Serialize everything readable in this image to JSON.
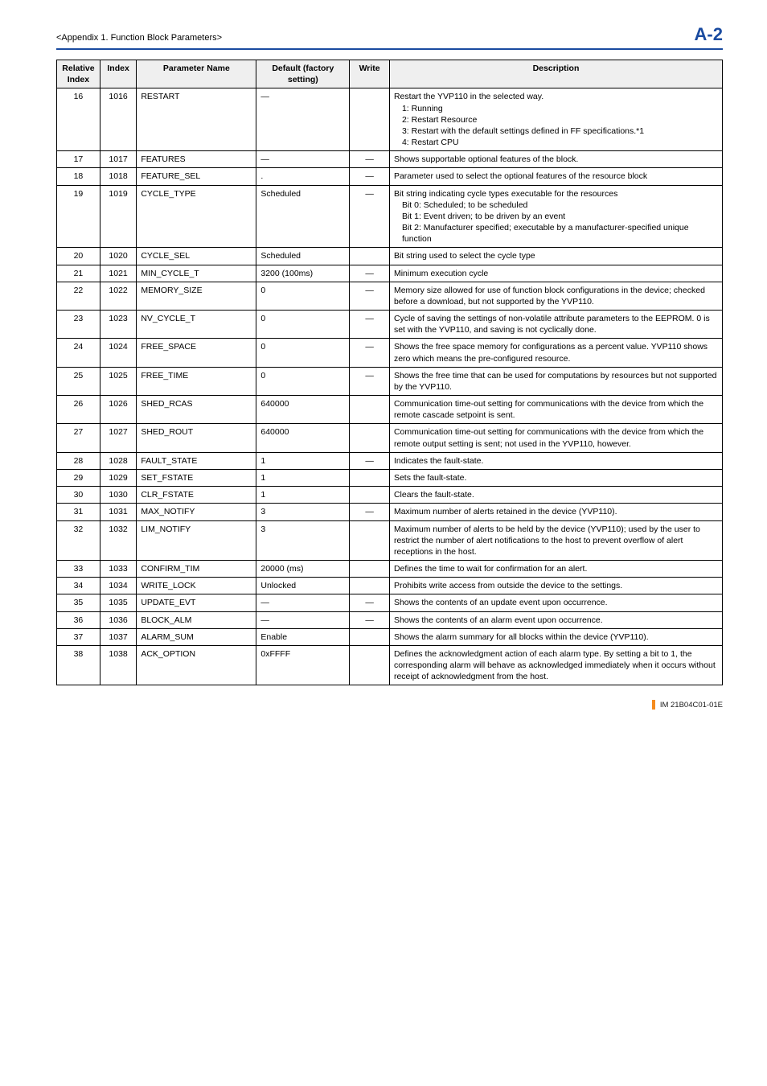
{
  "header": {
    "title": "<Appendix 1.  Function Block Parameters>",
    "page": "A-2"
  },
  "footer": {
    "text": "IM 21B04C01-01E",
    "bar_color": "#f58b1f"
  },
  "table": {
    "columns": [
      "Relative Index",
      "Index",
      "Parameter Name",
      "Default (factory setting)",
      "Write",
      "Description"
    ],
    "rows": [
      {
        "rel": "16",
        "idx": "1016",
        "name": "RESTART",
        "def": "—",
        "wr": "",
        "desc": "Restart the YVP110 in the selected way.",
        "desc_lines": [
          "1: Running",
          "2: Restart Resource",
          "3: Restart with the default settings defined in FF specifications.*1",
          "4: Restart CPU"
        ]
      },
      {
        "rel": "17",
        "idx": "1017",
        "name": "FEATURES",
        "def": "—",
        "wr": "—",
        "desc": "Shows supportable optional features of the block."
      },
      {
        "rel": "18",
        "idx": "1018",
        "name": "FEATURE_SEL",
        "def": ".",
        "wr": "—",
        "desc": "Parameter used to select the optional features of the resource block"
      },
      {
        "rel": "19",
        "idx": "1019",
        "name": "CYCLE_TYPE",
        "def": "Scheduled",
        "wr": "—",
        "desc": "Bit string indicating cycle types executable for the resources",
        "desc_lines": [
          "Bit 0: Scheduled; to be scheduled",
          "Bit 1: Event driven; to be driven by an event",
          "Bit 2: Manufacturer specified; executable by a manufacturer-specified unique function"
        ]
      },
      {
        "rel": "20",
        "idx": "1020",
        "name": "CYCLE_SEL",
        "def": "Scheduled",
        "wr": "",
        "desc": "Bit string used to select the cycle type"
      },
      {
        "rel": "21",
        "idx": "1021",
        "name": "MIN_CYCLE_T",
        "def": "3200 (100ms)",
        "wr": "—",
        "desc": "Minimum execution cycle"
      },
      {
        "rel": "22",
        "idx": "1022",
        "name": "MEMORY_SIZE",
        "def": "0",
        "wr": "—",
        "desc": "Memory size allowed for use of function block configurations in the device; checked before a download, but not supported by the YVP110."
      },
      {
        "rel": "23",
        "idx": "1023",
        "name": "NV_CYCLE_T",
        "def": "0",
        "wr": "—",
        "desc": "Cycle of saving the settings of non-volatile attribute parameters to the EEPROM. 0 is set with the YVP110, and saving is not cyclically done."
      },
      {
        "rel": "24",
        "idx": "1024",
        "name": "FREE_SPACE",
        "def": "0",
        "wr": "—",
        "desc": "Shows the free space memory for configurations as a percent value. YVP110 shows zero which means the pre-configured resource."
      },
      {
        "rel": "25",
        "idx": "1025",
        "name": "FREE_TIME",
        "def": "0",
        "wr": "—",
        "desc": "Shows the free time that can be used for computations by resources but not supported by the YVP110."
      },
      {
        "rel": "26",
        "idx": "1026",
        "name": "SHED_RCAS",
        "def": "640000",
        "wr": "",
        "desc": "Communication time-out setting for communications with the device from which the remote cascade setpoint is sent."
      },
      {
        "rel": "27",
        "idx": "1027",
        "name": "SHED_ROUT",
        "def": "640000",
        "wr": "",
        "desc": "Communication time-out setting for communications with the device from which the remote output setting is sent; not used in the YVP110, however."
      },
      {
        "rel": "28",
        "idx": "1028",
        "name": "FAULT_STATE",
        "def": "1",
        "wr": "—",
        "desc": "Indicates the fault-state."
      },
      {
        "rel": "29",
        "idx": "1029",
        "name": "SET_FSTATE",
        "def": "1",
        "wr": "",
        "desc": "Sets the fault-state."
      },
      {
        "rel": "30",
        "idx": "1030",
        "name": "CLR_FSTATE",
        "def": "1",
        "wr": "",
        "desc": "Clears the fault-state."
      },
      {
        "rel": "31",
        "idx": "1031",
        "name": "MAX_NOTIFY",
        "def": "3",
        "wr": "—",
        "desc": "Maximum number of alerts retained in the device (YVP110)."
      },
      {
        "rel": "32",
        "idx": "1032",
        "name": "LIM_NOTIFY",
        "def": "3",
        "wr": "",
        "desc": "Maximum number of alerts to be held by the device (YVP110); used by the user to restrict the number of alert notifications to the host to prevent overflow of alert receptions in the host."
      },
      {
        "rel": "33",
        "idx": "1033",
        "name": "CONFIRM_TIM",
        "def": "20000 (ms)",
        "wr": "",
        "desc": "Defines the time to wait for confirmation for an alert."
      },
      {
        "rel": "34",
        "idx": "1034",
        "name": "WRITE_LOCK",
        "def": "Unlocked",
        "wr": "",
        "desc": "Prohibits write access from outside the device to the settings."
      },
      {
        "rel": "35",
        "idx": "1035",
        "name": "UPDATE_EVT",
        "def": "—",
        "wr": "—",
        "desc": "Shows the contents of an update event upon occurrence."
      },
      {
        "rel": "36",
        "idx": "1036",
        "name": "BLOCK_ALM",
        "def": "—",
        "wr": "—",
        "desc": "Shows the contents of an alarm event upon occurrence."
      },
      {
        "rel": "37",
        "idx": "1037",
        "name": "ALARM_SUM",
        "def": "Enable",
        "wr": "",
        "desc": "Shows the alarm summary for all blocks within the device (YVP110)."
      },
      {
        "rel": "38",
        "idx": "1038",
        "name": "ACK_OPTION",
        "def": "0xFFFF",
        "wr": "",
        "desc": "Defines the acknowledgment action of each alarm type. By setting a bit to 1, the corresponding alarm will behave as acknowledged immediately when it occurs without receipt of acknowledgment from the host."
      }
    ]
  }
}
